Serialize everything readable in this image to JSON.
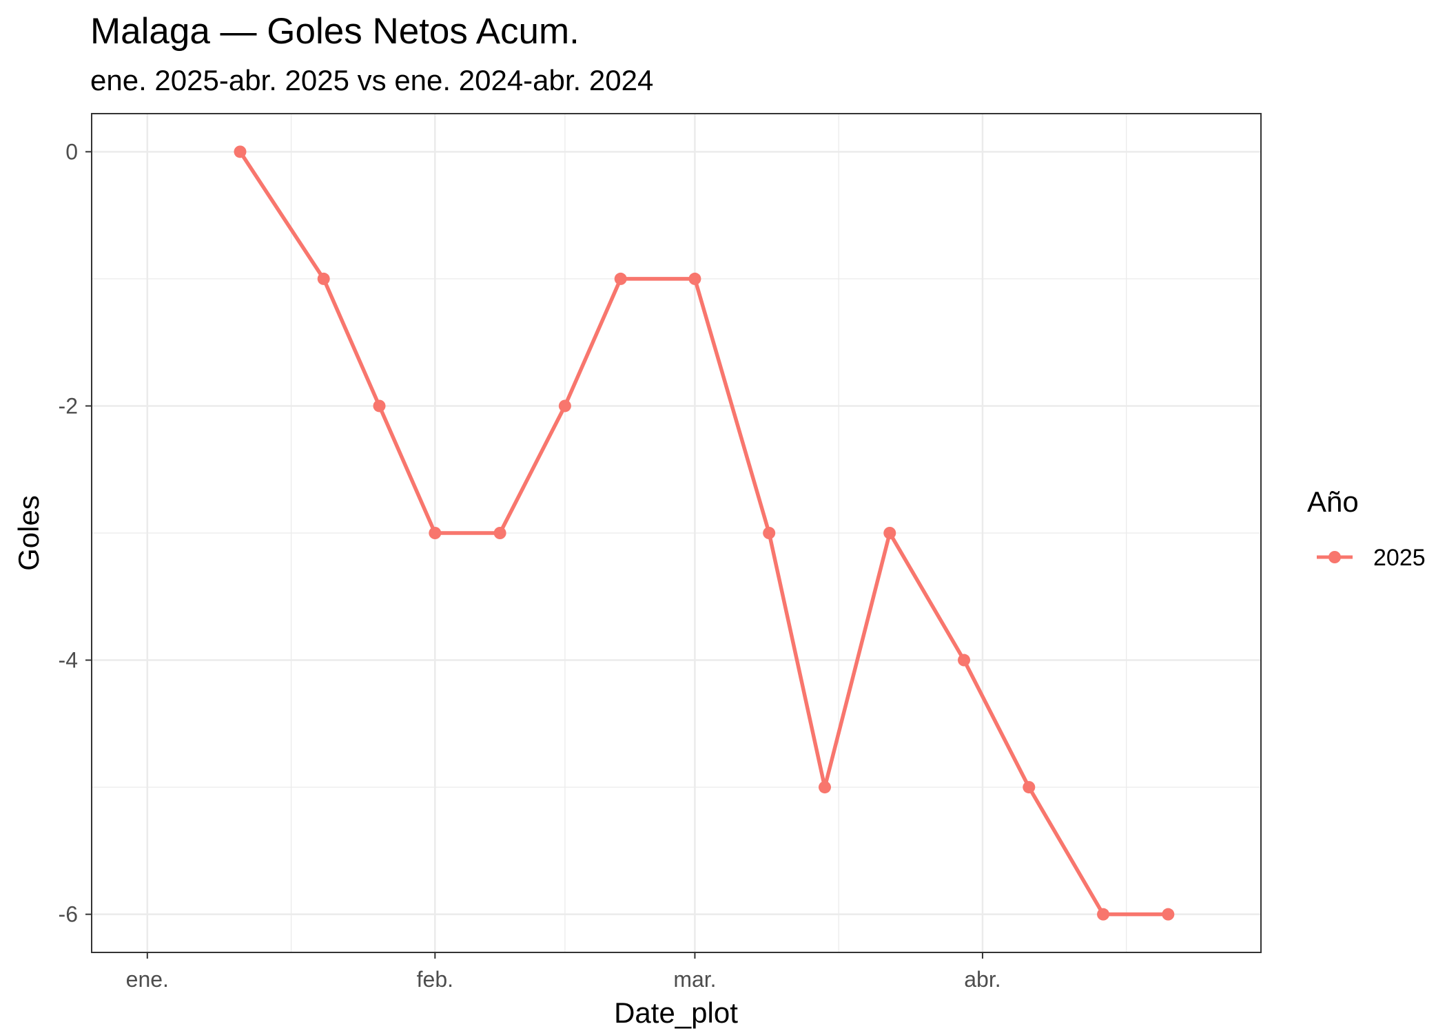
{
  "chart_data": {
    "type": "line",
    "title": "Malaga — Goles Netos Acum.",
    "subtitle": "ene. 2025-abr. 2025 vs ene. 2024-abr. 2024",
    "xlabel": "Date_plot",
    "ylabel": "Goles",
    "x_ticks": [
      {
        "date": "2025-01-01",
        "label": "ene."
      },
      {
        "date": "2025-02-01",
        "label": "feb."
      },
      {
        "date": "2025-03-01",
        "label": "mar."
      },
      {
        "date": "2025-04-01",
        "label": "abr."
      }
    ],
    "y_ticks": [
      0,
      -2,
      -4,
      -6
    ],
    "xlim": [
      "2024-12-26",
      "2025-05-01"
    ],
    "ylim": [
      -6.3,
      0.3
    ],
    "grid": true,
    "legend": {
      "title": "Año",
      "position": "right"
    },
    "series": [
      {
        "name": "2025",
        "color": "#F8766D",
        "points": [
          {
            "x": "2025-01-11",
            "y": 0
          },
          {
            "x": "2025-01-20",
            "y": -1
          },
          {
            "x": "2025-01-26",
            "y": -2
          },
          {
            "x": "2025-02-01",
            "y": -3
          },
          {
            "x": "2025-02-08",
            "y": -3
          },
          {
            "x": "2025-02-15",
            "y": -2
          },
          {
            "x": "2025-02-21",
            "y": -1
          },
          {
            "x": "2025-03-01",
            "y": -1
          },
          {
            "x": "2025-03-09",
            "y": -3
          },
          {
            "x": "2025-03-15",
            "y": -5
          },
          {
            "x": "2025-03-22",
            "y": -3
          },
          {
            "x": "2025-03-30",
            "y": -4
          },
          {
            "x": "2025-04-06",
            "y": -5
          },
          {
            "x": "2025-04-14",
            "y": -6
          },
          {
            "x": "2025-04-21",
            "y": -6
          }
        ]
      }
    ]
  }
}
